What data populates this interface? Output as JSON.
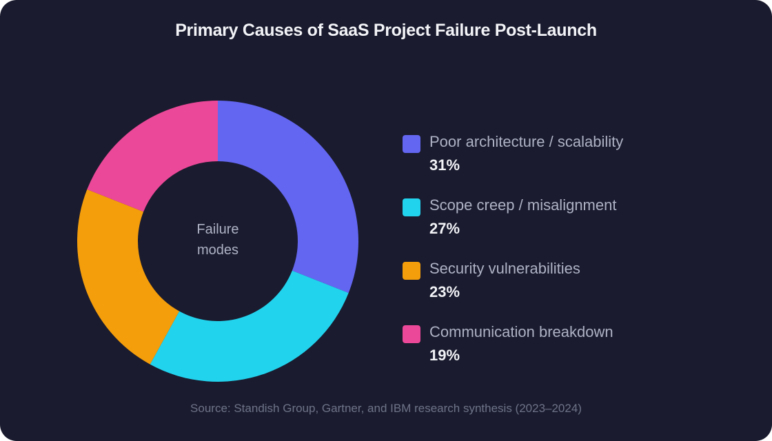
{
  "chart_data": {
    "type": "pie",
    "title": "Primary Causes of SaaS Project Failure Post-Launch",
    "center_label_line1": "Failure",
    "center_label_line2": "modes",
    "legend_position": "right",
    "source": "Source: Standish Group, Gartner, and IBM research synthesis (2023–2024)",
    "slices": [
      {
        "label": "Poor architecture / scalability",
        "value": 31,
        "display": "31%",
        "color": "#6366f1"
      },
      {
        "label": "Scope creep / misalignment",
        "value": 27,
        "display": "27%",
        "color": "#22d3ee"
      },
      {
        "label": "Security vulnerabilities",
        "value": 23,
        "display": "23%",
        "color": "#f59e0b"
      },
      {
        "label": "Communication breakdown",
        "value": 19,
        "display": "19%",
        "color": "#ec4899"
      }
    ]
  },
  "colors": {
    "background": "#1a1b2e"
  }
}
